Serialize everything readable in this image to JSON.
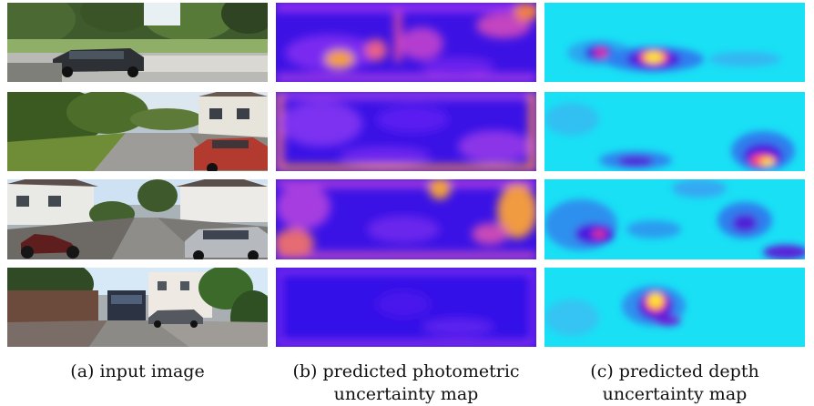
{
  "figure": {
    "columns": [
      {
        "caption_line1": "(a) input image",
        "caption_line2": "",
        "content": "road scene photographs"
      },
      {
        "caption_line1": "(b) predicted photometric",
        "caption_line2": "uncertainty map",
        "content": "photometric uncertainty heat maps"
      },
      {
        "caption_line1": "(c) predicted depth",
        "caption_line2": "uncertainty map",
        "content": "depth uncertainty heat maps"
      }
    ],
    "rows": 4,
    "colors": {
      "photometric_low": "#3a10e6",
      "photometric_high": "#ff9a3c",
      "depth_low": "#19e0f5",
      "depth_high": "#ffe52a"
    }
  }
}
